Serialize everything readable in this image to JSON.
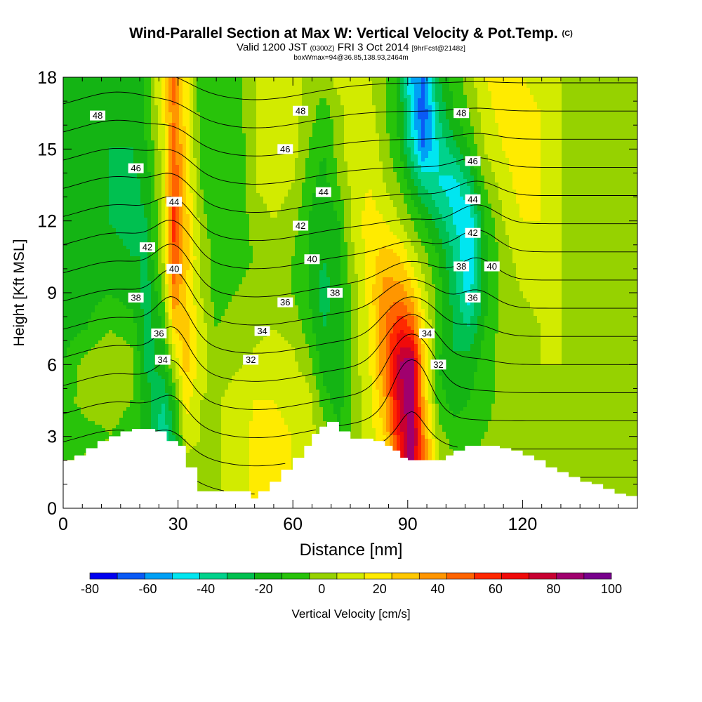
{
  "title": {
    "main": "Wind-Parallel Section at Max W: Vertical Velocity & Pot.Temp.",
    "copyright": "(C)",
    "valid_prefix": "Valid 1200 JST",
    "valid_utc": "(0300Z)",
    "valid_date": "FRI 3 Oct 2014",
    "forecast": "[9hrFcst@2148z]",
    "box_info": "boxWmax=94@36.85,138.93,2464m"
  },
  "chart_data": {
    "type": "heatmap",
    "xlabel": "Distance [nm]",
    "ylabel": "Height [Kft MSL]",
    "xlim": [
      0,
      150
    ],
    "ylim": [
      0,
      18
    ],
    "x_ticks": [
      0,
      30,
      60,
      90,
      120
    ],
    "y_ticks": [
      0,
      3,
      6,
      9,
      12,
      15,
      18
    ],
    "colorbar": {
      "label": "Vertical Velocity [cm/s]",
      "tick_labels": [
        -80,
        -60,
        -40,
        -20,
        0,
        20,
        40,
        60,
        80,
        100
      ],
      "levels": [
        -80,
        -70,
        -60,
        -50,
        -40,
        -30,
        -20,
        -10,
        0,
        10,
        20,
        30,
        40,
        50,
        60,
        70,
        80,
        90,
        100
      ],
      "colors": [
        "#0000f0",
        "#0a5af5",
        "#00a0f5",
        "#00e6f0",
        "#00d28c",
        "#00c050",
        "#14b414",
        "#28c30a",
        "#96d200",
        "#d2eb00",
        "#ffeb00",
        "#ffc800",
        "#ff9600",
        "#ff6400",
        "#ff2800",
        "#f00a0a",
        "#c80032",
        "#a0006e",
        "#78008c"
      ]
    },
    "field": {
      "name": "Vertical Velocity",
      "units": "cm/s",
      "x": [
        0,
        6,
        12,
        18,
        22,
        26,
        29,
        32,
        36,
        40,
        45,
        50,
        55,
        60,
        64,
        68,
        72,
        76,
        80,
        84,
        88,
        91,
        94,
        98,
        102,
        106,
        110,
        115,
        120,
        125,
        130,
        135,
        140,
        145,
        150
      ],
      "y": [
        0,
        1.5,
        3,
        4.5,
        6,
        7.5,
        9,
        10.5,
        12,
        13.5,
        15,
        16.5,
        18
      ],
      "w": [
        [
          5,
          5,
          5,
          0,
          -10,
          -45,
          -30,
          5,
          5,
          8,
          15,
          22,
          22,
          20,
          15,
          5,
          5,
          10,
          20,
          35,
          70,
          95,
          50,
          15,
          5,
          5,
          5,
          5,
          5,
          8,
          8,
          5,
          5,
          5,
          5
        ],
        [
          5,
          5,
          5,
          0,
          -10,
          -45,
          -30,
          5,
          5,
          8,
          15,
          22,
          22,
          20,
          15,
          5,
          5,
          10,
          20,
          35,
          70,
          95,
          50,
          15,
          5,
          5,
          5,
          5,
          5,
          8,
          8,
          5,
          5,
          5,
          5
        ],
        [
          -10,
          -5,
          0,
          -5,
          -15,
          -40,
          -20,
          15,
          10,
          8,
          15,
          22,
          22,
          20,
          15,
          5,
          -10,
          5,
          15,
          30,
          75,
          100,
          50,
          5,
          -5,
          -5,
          0,
          5,
          8,
          8,
          5,
          3,
          3,
          5,
          5
        ],
        [
          -5,
          5,
          5,
          0,
          -15,
          -30,
          -10,
          25,
          10,
          8,
          15,
          20,
          20,
          18,
          15,
          -5,
          -15,
          5,
          15,
          40,
          85,
          100,
          40,
          -5,
          -15,
          -10,
          -5,
          5,
          8,
          8,
          5,
          3,
          3,
          3,
          3
        ],
        [
          -10,
          5,
          10,
          5,
          -25,
          -15,
          10,
          35,
          15,
          5,
          8,
          12,
          15,
          12,
          5,
          -15,
          -20,
          5,
          20,
          50,
          90,
          100,
          35,
          -10,
          -20,
          -15,
          -5,
          5,
          8,
          10,
          10,
          5,
          5,
          5,
          5
        ],
        [
          -15,
          -10,
          0,
          -5,
          -25,
          -10,
          30,
          35,
          15,
          0,
          5,
          8,
          10,
          8,
          -5,
          -20,
          -15,
          5,
          20,
          50,
          70,
          60,
          25,
          -5,
          -20,
          -30,
          -10,
          5,
          8,
          10,
          10,
          5,
          3,
          3,
          3
        ],
        [
          -15,
          -15,
          -10,
          -15,
          -25,
          0,
          50,
          30,
          10,
          -5,
          0,
          5,
          5,
          0,
          -10,
          -25,
          -15,
          5,
          25,
          45,
          45,
          35,
          15,
          -5,
          -25,
          -45,
          -15,
          5,
          10,
          12,
          10,
          5,
          0,
          3,
          3
        ],
        [
          -15,
          -20,
          -15,
          -20,
          -20,
          10,
          60,
          35,
          10,
          -5,
          -5,
          0,
          5,
          0,
          -10,
          -20,
          -10,
          10,
          25,
          35,
          30,
          15,
          5,
          -10,
          -30,
          -50,
          -15,
          5,
          15,
          15,
          10,
          5,
          0,
          5,
          3
        ],
        [
          -20,
          -20,
          -20,
          -25,
          -20,
          10,
          65,
          35,
          5,
          -10,
          -10,
          5,
          10,
          5,
          -10,
          -20,
          -10,
          15,
          25,
          20,
          10,
          0,
          -10,
          -25,
          -40,
          -50,
          -10,
          10,
          20,
          20,
          10,
          5,
          0,
          5,
          5
        ],
        [
          -20,
          -20,
          -20,
          -25,
          -15,
          15,
          60,
          30,
          0,
          -10,
          -10,
          10,
          15,
          10,
          -5,
          -15,
          0,
          15,
          20,
          10,
          0,
          -15,
          -30,
          -40,
          -45,
          -30,
          0,
          15,
          25,
          20,
          10,
          5,
          0,
          5,
          5
        ],
        [
          -15,
          -15,
          -20,
          -20,
          -10,
          15,
          55,
          30,
          -5,
          -10,
          -10,
          10,
          20,
          15,
          0,
          -10,
          5,
          20,
          20,
          5,
          -10,
          -35,
          -60,
          -40,
          -25,
          -10,
          10,
          20,
          25,
          20,
          10,
          5,
          0,
          5,
          5
        ],
        [
          -10,
          -15,
          -15,
          -20,
          -5,
          20,
          50,
          25,
          -5,
          -10,
          -5,
          10,
          20,
          15,
          5,
          -5,
          5,
          20,
          15,
          0,
          -15,
          -45,
          -70,
          -30,
          -10,
          0,
          15,
          25,
          25,
          20,
          10,
          5,
          5,
          5,
          5
        ],
        [
          -10,
          -15,
          -15,
          -20,
          -5,
          25,
          55,
          25,
          -10,
          -10,
          -5,
          10,
          20,
          15,
          5,
          5,
          15,
          20,
          10,
          0,
          -15,
          -50,
          -60,
          -20,
          -5,
          5,
          20,
          25,
          20,
          15,
          10,
          5,
          5,
          5,
          5
        ]
      ]
    },
    "contours": {
      "name": "Pot.Temp.",
      "levels": [
        30,
        31,
        32,
        33,
        34,
        35,
        36,
        37,
        38,
        39,
        40,
        41,
        42,
        43,
        44,
        45,
        46,
        47,
        48,
        49
      ],
      "labels": [
        {
          "value": 48,
          "text": "48",
          "x": 9,
          "y": 16.4
        },
        {
          "value": 46,
          "text": "46",
          "x": 19,
          "y": 14.2
        },
        {
          "value": 44,
          "text": "44",
          "x": 29,
          "y": 12.8
        },
        {
          "value": 42,
          "text": "42",
          "x": 22,
          "y": 10.9
        },
        {
          "value": 40,
          "text": "40",
          "x": 29,
          "y": 10
        },
        {
          "value": 38,
          "text": "38",
          "x": 19,
          "y": 8.8
        },
        {
          "value": 36,
          "text": "36",
          "x": 25,
          "y": 7.3
        },
        {
          "value": 34,
          "text": "34",
          "x": 26,
          "y": 6.2
        },
        {
          "value": 32,
          "text": "32",
          "x": 49,
          "y": 6.2
        },
        {
          "value": 34,
          "text": "34",
          "x": 52,
          "y": 7.4
        },
        {
          "value": 36,
          "text": "36",
          "x": 58,
          "y": 8.6
        },
        {
          "value": 38,
          "text": "38",
          "x": 71,
          "y": 9
        },
        {
          "value": 40,
          "text": "40",
          "x": 65,
          "y": 10.4
        },
        {
          "value": 42,
          "text": "42",
          "x": 62,
          "y": 11.8
        },
        {
          "value": 44,
          "text": "44",
          "x": 68,
          "y": 13.2
        },
        {
          "value": 46,
          "text": "46",
          "x": 58,
          "y": 15
        },
        {
          "value": 48,
          "text": "48",
          "x": 62,
          "y": 16.6
        },
        {
          "value": 34,
          "text": "34",
          "x": 95,
          "y": 7.3
        },
        {
          "value": 32,
          "text": "32",
          "x": 98,
          "y": 6
        },
        {
          "value": 36,
          "text": "36",
          "x": 107,
          "y": 8.8
        },
        {
          "value": 38,
          "text": "38",
          "x": 104,
          "y": 10.1
        },
        {
          "value": 40,
          "text": "40",
          "x": 112,
          "y": 10.1
        },
        {
          "value": 42,
          "text": "42",
          "x": 107,
          "y": 11.5
        },
        {
          "value": 44,
          "text": "44",
          "x": 107,
          "y": 12.9
        },
        {
          "value": 46,
          "text": "46",
          "x": 107,
          "y": 14.5
        },
        {
          "value": 48,
          "text": "48",
          "x": 104,
          "y": 16.5
        }
      ]
    },
    "terrain": {
      "x": [
        0,
        3,
        6,
        9,
        12,
        15,
        18,
        21,
        24,
        27,
        30,
        32,
        35,
        38,
        41,
        44,
        46,
        49,
        51,
        54,
        57,
        60,
        63,
        65,
        67,
        69,
        72,
        75,
        78,
        81,
        84,
        86,
        88,
        90,
        92,
        94,
        96,
        98,
        100,
        102,
        105,
        108,
        111,
        114,
        117,
        120,
        123,
        126,
        129,
        132,
        135,
        138,
        141,
        144,
        147,
        150
      ],
      "height_kft": [
        2,
        2.2,
        2.5,
        2.8,
        3,
        3.2,
        3.3,
        3.3,
        3.2,
        2.8,
        2.6,
        1.7,
        0.7,
        0.7,
        0.7,
        0.7,
        0.7,
        0.4,
        0.7,
        1.1,
        1.6,
        2.1,
        2.6,
        3.1,
        3.4,
        3.6,
        3.2,
        2.9,
        2.9,
        2.8,
        2.6,
        2.4,
        2.1,
        2.0,
        2.0,
        2.0,
        2.0,
        2.0,
        2.2,
        2.4,
        2.6,
        2.6,
        2.6,
        2.5,
        2.4,
        2.2,
        2.0,
        1.7,
        1.5,
        1.3,
        1.1,
        1.0,
        0.8,
        0.6,
        0.5,
        0.4
      ]
    }
  }
}
